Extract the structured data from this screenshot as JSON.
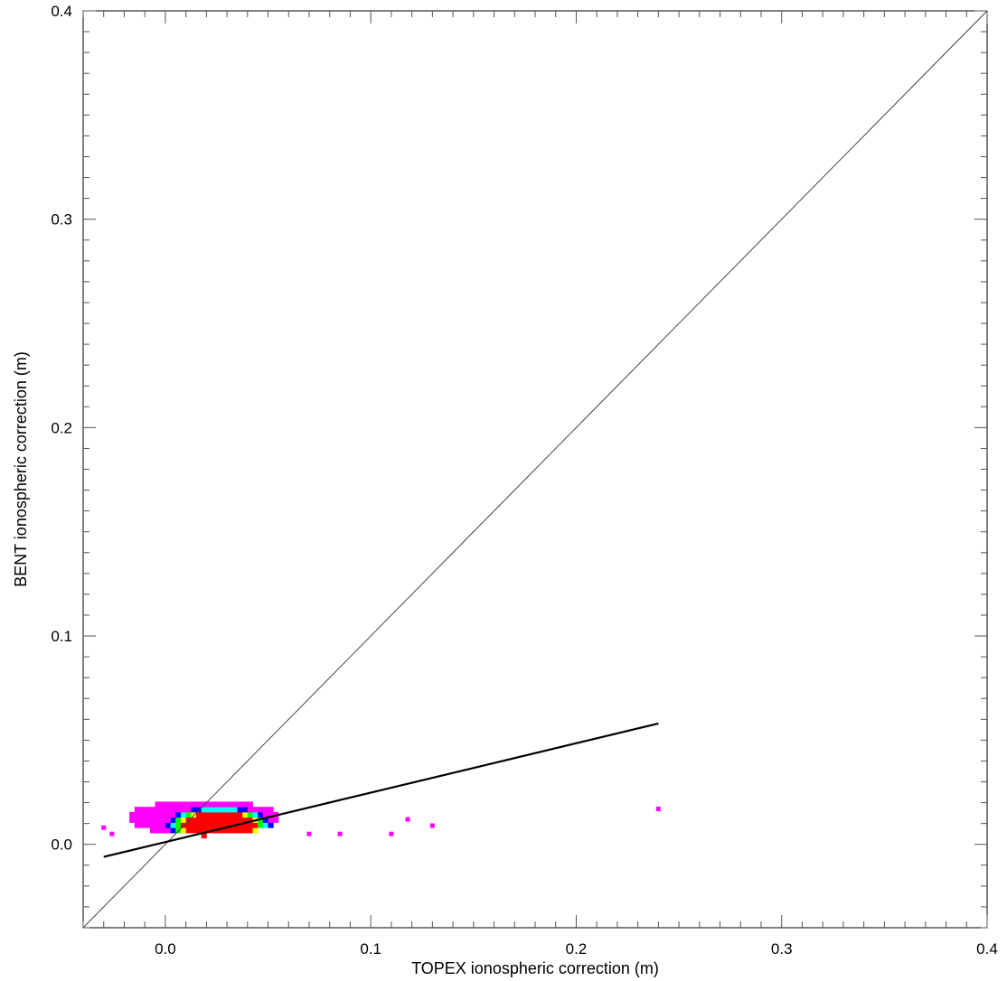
{
  "title": "",
  "chart_data": {
    "type": "heatmap",
    "title": "",
    "xlabel": "TOPEX ionospheric correction (m)",
    "ylabel": "BENT ionospheric correction (m)",
    "xlim": [
      -0.04,
      0.4
    ],
    "ylim": [
      -0.04,
      0.4
    ],
    "x_ticks": [
      "0.0",
      "0.1",
      "0.2",
      "0.3",
      "0.4"
    ],
    "y_ticks": [
      "0.0",
      "0.1",
      "0.2",
      "0.3",
      "0.4"
    ],
    "x_tick_values": [
      0.0,
      0.1,
      0.2,
      0.3,
      0.4
    ],
    "y_tick_values": [
      0.0,
      0.1,
      0.2,
      0.3,
      0.4
    ],
    "grid": false,
    "colors": {
      "low": "#ff00ff",
      "mid_low": "#0000ff",
      "mid": "#00ffff",
      "mid_high": "#00ff00",
      "high_low": "#ffff00",
      "high": "#ff0000"
    },
    "density_cluster": {
      "x_range": [
        -0.02,
        0.055
      ],
      "y_range": [
        0.003,
        0.02
      ],
      "peak": [
        0.025,
        0.008
      ]
    },
    "outliers": [
      {
        "x": 0.07,
        "y": 0.005
      },
      {
        "x": 0.085,
        "y": 0.005
      },
      {
        "x": 0.11,
        "y": 0.005
      },
      {
        "x": 0.118,
        "y": 0.012
      },
      {
        "x": 0.13,
        "y": 0.009
      },
      {
        "x": 0.24,
        "y": 0.017
      },
      {
        "x": -0.03,
        "y": 0.008
      },
      {
        "x": -0.026,
        "y": 0.005
      }
    ],
    "series": [
      {
        "type": "line",
        "points": [
          [
            -0.04,
            -0.04
          ],
          [
            0.4,
            0.4
          ]
        ]
      },
      {
        "type": "line",
        "points": [
          [
            -0.03,
            -0.006
          ],
          [
            0.24,
            0.058
          ]
        ]
      }
    ]
  }
}
